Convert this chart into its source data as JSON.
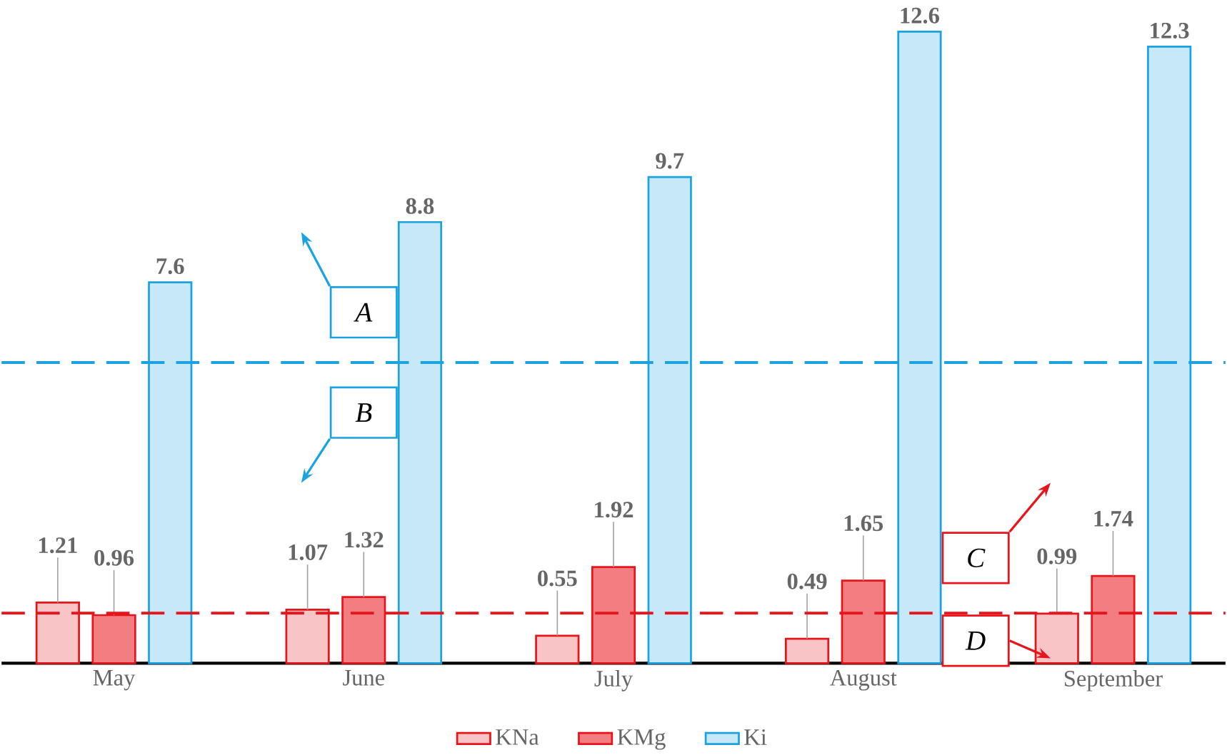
{
  "chart_data": {
    "type": "bar",
    "categories": [
      "May",
      "June",
      "July",
      "August",
      "September"
    ],
    "series": [
      {
        "name": "KNa",
        "color": "#e8141c",
        "values": [
          1.21,
          1.07,
          0.55,
          0.49,
          0.99
        ]
      },
      {
        "name": "KMg",
        "color": "#e8141c",
        "values": [
          0.96,
          1.32,
          1.92,
          1.65,
          1.74
        ]
      },
      {
        "name": "Ki",
        "color": "#1aa3e0",
        "values": [
          7.6,
          8.8,
          9.7,
          12.6,
          12.3
        ]
      }
    ],
    "data_labels": true,
    "legend": "bottom",
    "tick_labels": "x",
    "ref_lines": [
      {
        "axis": "y",
        "value": 6,
        "color": "#1aa3e0",
        "line_style": "dashed"
      },
      {
        "axis": "y",
        "value": 1,
        "color": "#e8141c",
        "line_style": "dashed"
      }
    ],
    "annotations": [
      "A",
      "B",
      "C",
      "D"
    ]
  }
}
